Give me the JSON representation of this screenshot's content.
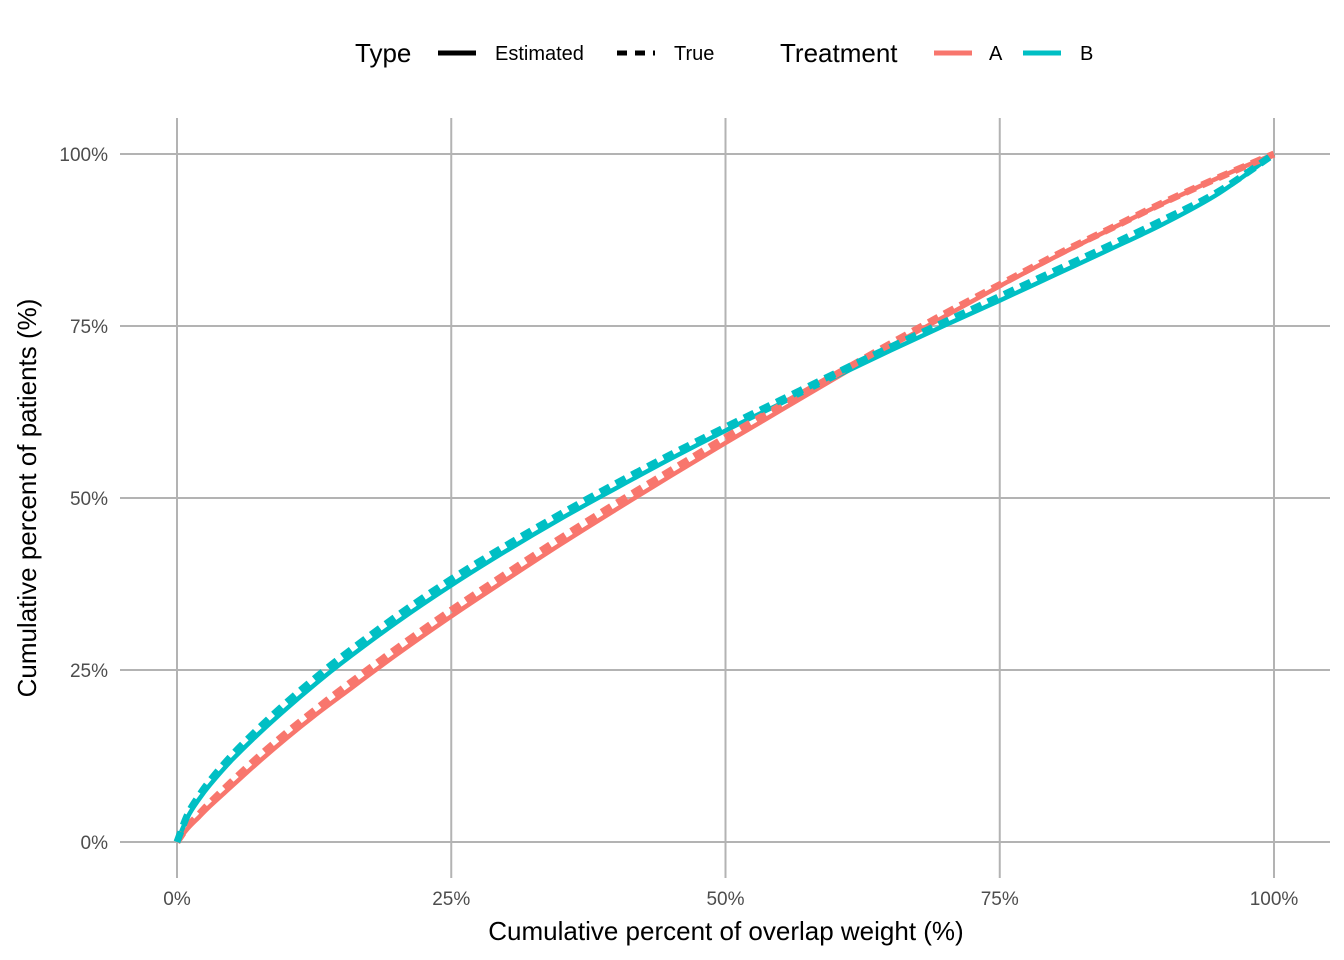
{
  "chart_data": {
    "type": "line",
    "title": "",
    "xlabel": "Cumulative percent of overlap weight (%)",
    "ylabel": "Cumulative percent of patients (%)",
    "xlim": [
      0,
      100
    ],
    "ylim": [
      0,
      100
    ],
    "grid": true,
    "x_ticks": [
      {
        "value": 0,
        "label": "0%"
      },
      {
        "value": 25,
        "label": "25%"
      },
      {
        "value": 50,
        "label": "50%"
      },
      {
        "value": 75,
        "label": "75%"
      },
      {
        "value": 100,
        "label": "100%"
      }
    ],
    "y_ticks": [
      {
        "value": 0,
        "label": "0%"
      },
      {
        "value": 25,
        "label": "25%"
      },
      {
        "value": 50,
        "label": "50%"
      },
      {
        "value": 75,
        "label": "75%"
      },
      {
        "value": 100,
        "label": "100%"
      }
    ],
    "legend": {
      "position": "top",
      "groups": [
        {
          "title": "Type",
          "entries": [
            {
              "label": "Estimated",
              "style": "solid",
              "color": "#000000"
            },
            {
              "label": "True",
              "style": "dashed",
              "color": "#000000"
            }
          ]
        },
        {
          "title": "Treatment",
          "entries": [
            {
              "label": "A",
              "style": "solid",
              "color": "#F8766D"
            },
            {
              "label": "B",
              "style": "solid",
              "color": "#00BFC4"
            }
          ]
        }
      ]
    },
    "x": [
      0,
      1,
      2,
      3,
      5,
      7.5,
      10,
      12.5,
      15,
      20,
      25,
      30,
      35,
      40,
      45,
      50,
      55,
      60,
      65,
      70,
      75,
      80,
      85,
      90,
      95,
      100
    ],
    "series": [
      {
        "name": "A - Estimated",
        "treatment": "A",
        "type": "Estimated",
        "color": "#F8766D",
        "style": "solid",
        "values": [
          0,
          2,
          3.6,
          5.2,
          8.1,
          11.7,
          15.1,
          18.3,
          21.3,
          27.2,
          32.8,
          38.1,
          43.3,
          48.3,
          53.2,
          58.0,
          62.7,
          67.4,
          72.0,
          76.4,
          80.8,
          85.0,
          89.0,
          92.9,
          96.6,
          100
        ]
      },
      {
        "name": "A - True",
        "treatment": "A",
        "type": "True",
        "color": "#F8766D",
        "style": "dashed",
        "values": [
          0,
          2.3,
          4.0,
          5.7,
          8.8,
          12.5,
          15.9,
          19.1,
          22.2,
          28.1,
          33.7,
          39.0,
          44.2,
          49.2,
          54.0,
          58.8,
          63.4,
          67.9,
          72.4,
          76.8,
          81.0,
          85.2,
          89.1,
          93.0,
          96.6,
          100
        ]
      },
      {
        "name": "B - Estimated",
        "treatment": "B",
        "type": "Estimated",
        "color": "#00BFC4",
        "style": "solid",
        "values": [
          0,
          3.7,
          6.2,
          8.3,
          11.9,
          15.8,
          19.4,
          22.8,
          26.0,
          31.9,
          37.3,
          42.3,
          47.0,
          51.4,
          55.7,
          59.8,
          63.7,
          67.6,
          71.4,
          75.1,
          78.7,
          82.4,
          86.1,
          89.9,
          94.3,
          100
        ]
      },
      {
        "name": "B - True",
        "treatment": "B",
        "type": "True",
        "color": "#00BFC4",
        "style": "dashed",
        "values": [
          0,
          4.1,
          6.7,
          8.9,
          12.6,
          16.6,
          20.3,
          23.7,
          26.9,
          32.8,
          38.2,
          43.1,
          47.7,
          52.1,
          56.3,
          60.3,
          64.2,
          68.1,
          71.9,
          75.6,
          79.3,
          83.0,
          86.7,
          90.5,
          94.6,
          100
        ]
      }
    ]
  }
}
